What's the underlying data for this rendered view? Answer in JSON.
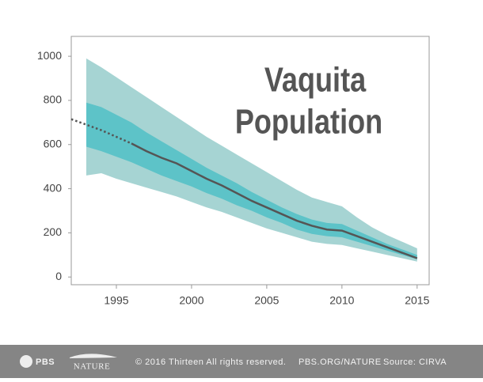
{
  "chart_data": {
    "type": "line",
    "title_lines": [
      "Vaquita",
      "Population"
    ],
    "xlim": [
      1992,
      2015.8
    ],
    "ylim": [
      -35,
      1090
    ],
    "xticks": [
      1995,
      2000,
      2005,
      2010,
      2015
    ],
    "yticks": [
      0,
      200,
      400,
      600,
      800,
      1000
    ],
    "line_color": "#555555",
    "series": [
      {
        "dash": "dotted",
        "x": [
          1992,
          1993,
          1994,
          1995,
          1996
        ],
        "values": [
          715,
          690,
          665,
          635,
          605
        ]
      },
      {
        "dash": "solid",
        "x": [
          1996,
          1997,
          1998,
          1999,
          2000,
          2001,
          2002,
          2003,
          2004,
          2005,
          2006,
          2007,
          2008,
          2009,
          2010,
          2011,
          2012,
          2013,
          2014,
          2015
        ],
        "values": [
          605,
          570,
          540,
          515,
          480,
          445,
          415,
          380,
          345,
          315,
          285,
          255,
          232,
          215,
          210,
          185,
          160,
          135,
          110,
          85
        ]
      }
    ],
    "bands": [
      {
        "color": "#a6d4d3",
        "x": [
          1993,
          1994,
          1995,
          1996,
          1997,
          1998,
          1999,
          2000,
          2001,
          2002,
          2003,
          2004,
          2005,
          2006,
          2007,
          2008,
          2009,
          2010,
          2011,
          2012,
          2013,
          2014,
          2015
        ],
        "upper": [
          990,
          950,
          905,
          860,
          815,
          770,
          725,
          680,
          635,
          595,
          555,
          515,
          475,
          435,
          395,
          360,
          340,
          320,
          270,
          225,
          190,
          160,
          130
        ],
        "lower": [
          460,
          470,
          445,
          425,
          405,
          385,
          365,
          340,
          315,
          295,
          270,
          245,
          220,
          200,
          180,
          160,
          150,
          145,
          130,
          115,
          100,
          85,
          70
        ]
      },
      {
        "color": "#5dc3c8",
        "x": [
          1993,
          1994,
          1995,
          1996,
          1997,
          1998,
          1999,
          2000,
          2001,
          2002,
          2003,
          2004,
          2005,
          2006,
          2007,
          2008,
          2009,
          2010,
          2011,
          2012,
          2013,
          2014,
          2015
        ],
        "upper": [
          790,
          770,
          735,
          700,
          655,
          615,
          575,
          535,
          495,
          460,
          425,
          385,
          350,
          315,
          285,
          260,
          245,
          240,
          210,
          180,
          150,
          125,
          100
        ],
        "lower": [
          590,
          570,
          545,
          520,
          490,
          460,
          435,
          410,
          380,
          355,
          325,
          300,
          270,
          245,
          215,
          195,
          185,
          180,
          160,
          140,
          120,
          100,
          80
        ]
      }
    ]
  },
  "footer": {
    "pbs": "PBS",
    "nature": "NATURE",
    "copyright": "© 2016 Thirteen  All rights reserved.",
    "url": "PBS.ORG/NATURE",
    "source": "Source: CIRVA"
  }
}
